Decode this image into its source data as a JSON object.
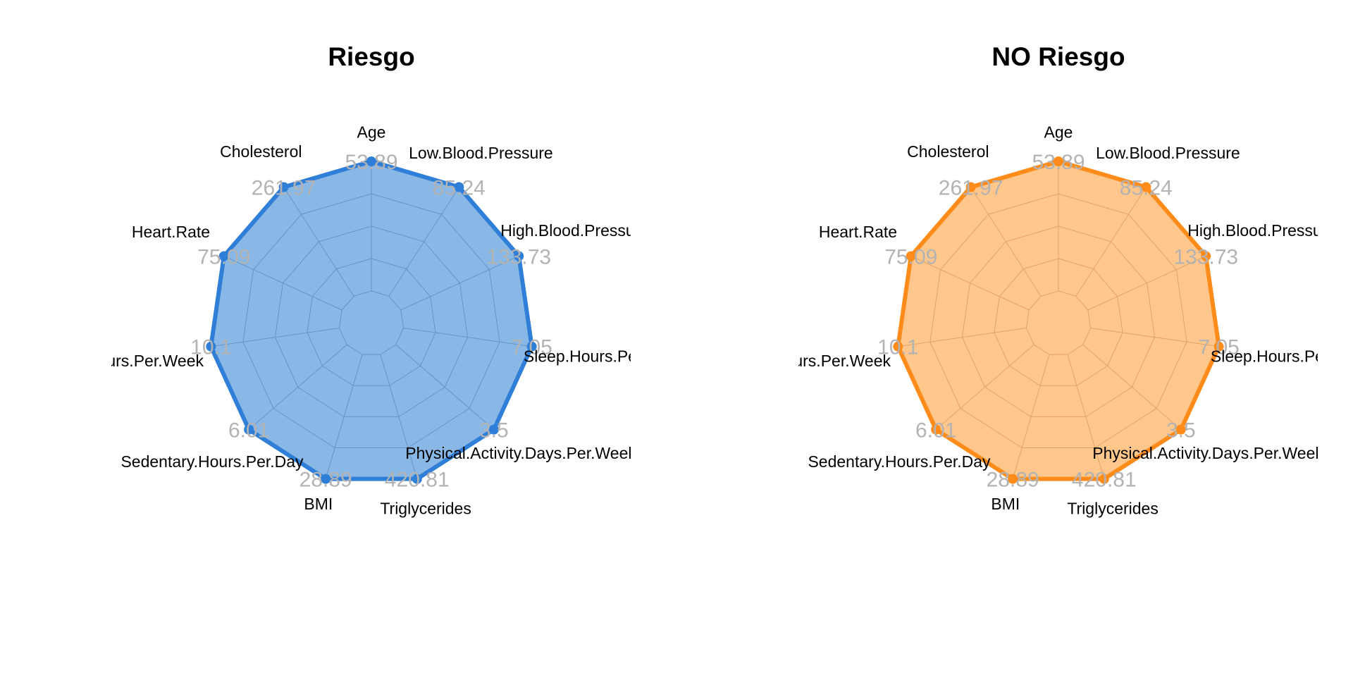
{
  "chart_data": [
    {
      "type": "radar",
      "title": "Riesgo",
      "axes": [
        "Age",
        "Low.Blood.Pressure",
        "High.Blood.Pressure",
        "Sleep.Hours.Per.Day",
        "Physical.Activity.Days.Per.Week",
        "Triglycerides",
        "BMI",
        "Sedentary.Hours.Per.Day",
        "Exercise.Hours.Per.Week",
        "Heart.Rate",
        "Cholesterol"
      ],
      "axis_max_labels": [
        "53.89",
        "85.24",
        "133.73",
        "7.05",
        "3.5",
        "420.81",
        "28.89",
        "6.01",
        "10.1",
        "75.09",
        "261.97"
      ],
      "values": [
        1,
        1,
        1,
        1,
        1,
        1,
        1,
        1,
        1,
        1,
        1
      ],
      "grid_levels": 4,
      "color": "#2f7fd8",
      "fill": "#4a90d9"
    },
    {
      "type": "radar",
      "title": "NO Riesgo",
      "axes": [
        "Age",
        "Low.Blood.Pressure",
        "High.Blood.Pressure",
        "Sleep.Hours.Per.Day",
        "Physical.Activity.Days.Per.Week",
        "Triglycerides",
        "BMI",
        "Sedentary.Hours.Per.Day",
        "Exercise.Hours.Per.Week",
        "Heart.Rate",
        "Cholesterol"
      ],
      "axis_max_labels": [
        "53.89",
        "85.24",
        "133.73",
        "7.05",
        "3.5",
        "420.81",
        "28.89",
        "6.01",
        "10.1",
        "75.09",
        "261.97"
      ],
      "values": [
        1,
        1,
        1,
        1,
        1,
        1,
        1,
        1,
        1,
        1,
        1
      ],
      "grid_levels": 4,
      "color": "#ff8c1a",
      "fill": "#ffa94d"
    }
  ]
}
